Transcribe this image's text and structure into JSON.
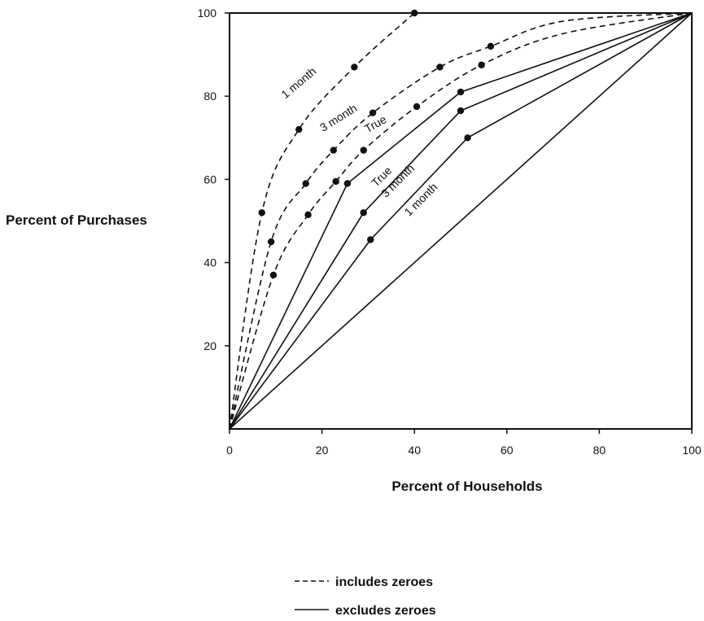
{
  "chart_data": {
    "type": "line",
    "title": "",
    "xlabel": "Percent of Households",
    "ylabel": "Percent of Purchases",
    "xlim": [
      0,
      100
    ],
    "ylim": [
      0,
      100
    ],
    "x_ticks": [
      0,
      20,
      40,
      60,
      80,
      100
    ],
    "y_ticks": [
      20,
      40,
      60,
      80,
      100
    ],
    "x_tick_labels": [
      "0",
      "20",
      "40",
      "60",
      "80",
      "100"
    ],
    "y_tick_labels": [
      "20",
      "40",
      "60",
      "80",
      "100"
    ],
    "grid": false,
    "legend_position": "bottom-center",
    "legend": [
      {
        "label": "includes zeroes",
        "style": "dashed"
      },
      {
        "label": "excludes zeroes",
        "style": "solid"
      }
    ],
    "series": [
      {
        "name": "1 month",
        "style": "dashed",
        "x": [
          0,
          7,
          15,
          27,
          40
        ],
        "y": [
          0,
          52,
          72,
          87,
          100
        ],
        "markers": [
          7,
          15,
          27,
          40
        ]
      },
      {
        "name": "3 month",
        "style": "dashed",
        "x": [
          0,
          9,
          16.5,
          22.5,
          31,
          45.5,
          56.5,
          72,
          100
        ],
        "y": [
          0,
          45,
          59,
          67,
          76,
          87,
          92,
          98,
          100
        ],
        "markers": [
          9,
          16.5,
          22.5,
          31,
          45.5,
          56.5
        ]
      },
      {
        "name": "True",
        "style": "dashed",
        "x": [
          0,
          9.5,
          17,
          23,
          29,
          40.5,
          54.5,
          72,
          100
        ],
        "y": [
          0,
          37,
          51.5,
          59.5,
          67,
          77.5,
          87.5,
          95,
          100
        ],
        "markers": [
          9.5,
          17,
          23,
          29,
          40.5,
          54.5
        ]
      },
      {
        "name": "True",
        "style": "solid",
        "x": [
          0,
          25.5,
          50,
          100
        ],
        "y": [
          0,
          59,
          81,
          100
        ],
        "markers": [
          25.5,
          50
        ]
      },
      {
        "name": "3 month",
        "style": "solid",
        "x": [
          0,
          29,
          50,
          100
        ],
        "y": [
          0,
          52,
          76.5,
          100
        ],
        "markers": [
          29,
          50
        ]
      },
      {
        "name": "1 month",
        "style": "solid",
        "x": [
          0,
          30.5,
          51.5,
          100
        ],
        "y": [
          0,
          45.5,
          70,
          100
        ],
        "markers": [
          30.5,
          51.5
        ]
      },
      {
        "name": "",
        "style": "solid",
        "x": [
          0,
          100
        ],
        "y": [
          0,
          100
        ],
        "markers": []
      }
    ],
    "curve_labels": [
      {
        "text": "1 month",
        "x": 15.5,
        "y": 82.5,
        "angle": -40
      },
      {
        "text": "3 month",
        "x": 24,
        "y": 74,
        "angle": -32
      },
      {
        "text": "True",
        "x": 32,
        "y": 72.5,
        "angle": -30
      },
      {
        "text": "True",
        "x": 33.5,
        "y": 60,
        "angle": -45
      },
      {
        "text": "3 month",
        "x": 37,
        "y": 59,
        "angle": -45
      },
      {
        "text": "1 month",
        "x": 42,
        "y": 54.5,
        "angle": -45
      }
    ]
  }
}
